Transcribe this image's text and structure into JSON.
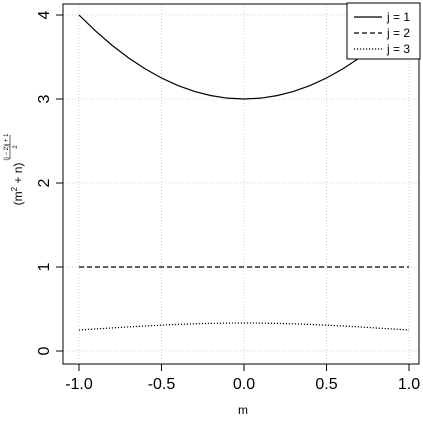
{
  "chart_data": {
    "type": "line",
    "xlabel": "m",
    "ylabel": {
      "base": "(m",
      "sup2": "2",
      "plus": " + n)",
      "exp_num": "(j − 2)j + 1",
      "exp_den": "2"
    },
    "xlim": [
      -1.0,
      1.0
    ],
    "ylim": [
      0,
      4
    ],
    "xticks": [
      -1.0,
      -0.5,
      0.0,
      0.5,
      1.0
    ],
    "xtick_labels": [
      "-1.0",
      "-0.5",
      "0.0",
      "0.5",
      "1.0"
    ],
    "yticks": [
      0,
      1,
      2,
      3,
      4
    ],
    "ytick_labels": [
      "0",
      "1",
      "2",
      "3",
      "4"
    ],
    "grid": true,
    "legend_position": "top-right",
    "series": [
      {
        "name": "j = 1",
        "line_style": "solid",
        "x": [
          -1.0,
          -0.9,
          -0.8,
          -0.7,
          -0.6,
          -0.5,
          -0.4,
          -0.3,
          -0.2,
          -0.1,
          0.0,
          0.1,
          0.2,
          0.3,
          0.4,
          0.5,
          0.6,
          0.7,
          0.8,
          0.9,
          1.0
        ],
        "y": [
          4.0,
          3.81,
          3.64,
          3.49,
          3.36,
          3.25,
          3.16,
          3.09,
          3.04,
          3.01,
          3.0,
          3.01,
          3.04,
          3.09,
          3.16,
          3.25,
          3.36,
          3.49,
          3.64,
          3.81,
          4.0
        ]
      },
      {
        "name": "j = 2",
        "line_style": "dashed",
        "x": [
          -1.0,
          -0.9,
          -0.8,
          -0.7,
          -0.6,
          -0.5,
          -0.4,
          -0.3,
          -0.2,
          -0.1,
          0.0,
          0.1,
          0.2,
          0.3,
          0.4,
          0.5,
          0.6,
          0.7,
          0.8,
          0.9,
          1.0
        ],
        "y": [
          1,
          1,
          1,
          1,
          1,
          1,
          1,
          1,
          1,
          1,
          1,
          1,
          1,
          1,
          1,
          1,
          1,
          1,
          1,
          1,
          1
        ]
      },
      {
        "name": "j = 3",
        "line_style": "dotted",
        "x": [
          -1.0,
          -0.9,
          -0.8,
          -0.7,
          -0.6,
          -0.5,
          -0.4,
          -0.3,
          -0.2,
          -0.1,
          0.0,
          0.1,
          0.2,
          0.3,
          0.4,
          0.5,
          0.6,
          0.7,
          0.8,
          0.9,
          1.0
        ],
        "y": [
          0.25,
          0.2625,
          0.2747,
          0.2865,
          0.2976,
          0.3077,
          0.3165,
          0.3236,
          0.3289,
          0.3322,
          0.3333,
          0.3322,
          0.3289,
          0.3236,
          0.3165,
          0.3077,
          0.2976,
          0.2865,
          0.2747,
          0.2625,
          0.25
        ]
      }
    ]
  }
}
